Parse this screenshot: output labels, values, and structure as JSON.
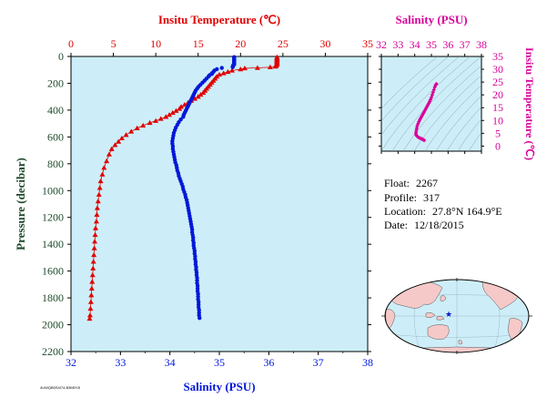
{
  "colors": {
    "temperature": "#e00000",
    "salinity": "#0018d8",
    "ts_plot": "#d8009a",
    "axis_text_dark": "#1f4a2a",
    "plot_bg": "#cdeef8",
    "land": "#f6c9c9",
    "ocean": "#cdeef8"
  },
  "chart_data": [
    {
      "type": "scatter",
      "title": "",
      "top_axis_label": "Insitu Temperature (℃)",
      "bottom_axis_label": "Salinity (PSU)",
      "ylabel": "Pressure (decibar)",
      "temp_lim": [
        0,
        35
      ],
      "sal_lim": [
        32,
        38
      ],
      "ylim": [
        2200,
        0
      ],
      "y_reversed": true,
      "temp_ticks": [
        "0",
        "5",
        "10",
        "15",
        "20",
        "25",
        "30",
        "35"
      ],
      "sal_ticks": [
        "32",
        "33",
        "34",
        "35",
        "36",
        "37",
        "38"
      ],
      "y_ticks": [
        "0",
        "200",
        "400",
        "600",
        "800",
        "1000",
        "1200",
        "1400",
        "1600",
        "1800",
        "2000",
        "2200"
      ],
      "grid": false,
      "series": [
        {
          "name": "Insitu Temperature",
          "marker": "triangle",
          "x_axis": "temperature",
          "points": [
            [
              24.3,
              5
            ],
            [
              24.3,
              10
            ],
            [
              24.3,
              15
            ],
            [
              24.3,
              20
            ],
            [
              24.3,
              25
            ],
            [
              24.3,
              30
            ],
            [
              24.3,
              35
            ],
            [
              24.3,
              40
            ],
            [
              24.3,
              45
            ],
            [
              24.3,
              50
            ],
            [
              24.3,
              55
            ],
            [
              24.3,
              60
            ],
            [
              24.2,
              65
            ],
            [
              24.2,
              70
            ],
            [
              24.1,
              75
            ],
            [
              23.5,
              80
            ],
            [
              22.0,
              85
            ],
            [
              20.5,
              88
            ],
            [
              20.0,
              95
            ],
            [
              19.0,
              105
            ],
            [
              18.5,
              115
            ],
            [
              18.0,
              125
            ],
            [
              17.5,
              135
            ],
            [
              17.2,
              150
            ],
            [
              17.0,
              165
            ],
            [
              16.8,
              180
            ],
            [
              16.6,
              195
            ],
            [
              16.4,
              210
            ],
            [
              16.2,
              225
            ],
            [
              16.0,
              240
            ],
            [
              15.8,
              255
            ],
            [
              15.6,
              270
            ],
            [
              15.3,
              285
            ],
            [
              15.0,
              300
            ],
            [
              14.6,
              315
            ],
            [
              14.2,
              330
            ],
            [
              13.8,
              345
            ],
            [
              13.4,
              360
            ],
            [
              13.0,
              375
            ],
            [
              12.8,
              390
            ],
            [
              12.4,
              405
            ],
            [
              12.0,
              420
            ],
            [
              11.6,
              435
            ],
            [
              11.2,
              450
            ],
            [
              10.6,
              465
            ],
            [
              10.0,
              480
            ],
            [
              9.3,
              495
            ],
            [
              8.5,
              515
            ],
            [
              7.8,
              535
            ],
            [
              7.1,
              560
            ],
            [
              6.5,
              585
            ],
            [
              6.0,
              610
            ],
            [
              5.6,
              635
            ],
            [
              5.2,
              660
            ],
            [
              4.8,
              690
            ],
            [
              4.5,
              730
            ],
            [
              4.2,
              780
            ],
            [
              3.9,
              830
            ],
            [
              3.7,
              880
            ],
            [
              3.5,
              930
            ],
            [
              3.4,
              980
            ],
            [
              3.3,
              1030
            ],
            [
              3.2,
              1080
            ],
            [
              3.1,
              1130
            ],
            [
              3.05,
              1180
            ],
            [
              3.0,
              1230
            ],
            [
              2.9,
              1280
            ],
            [
              2.85,
              1330
            ],
            [
              2.8,
              1380
            ],
            [
              2.75,
              1430
            ],
            [
              2.7,
              1480
            ],
            [
              2.65,
              1530
            ],
            [
              2.6,
              1580
            ],
            [
              2.55,
              1630
            ],
            [
              2.5,
              1680
            ],
            [
              2.45,
              1730
            ],
            [
              2.4,
              1780
            ],
            [
              2.35,
              1830
            ],
            [
              2.3,
              1880
            ],
            [
              2.25,
              1930
            ],
            [
              2.2,
              1955
            ]
          ]
        },
        {
          "name": "Salinity",
          "marker": "circle",
          "x_axis": "salinity",
          "points": [
            [
              35.3,
              5
            ],
            [
              35.3,
              10
            ],
            [
              35.3,
              15
            ],
            [
              35.3,
              20
            ],
            [
              35.3,
              25
            ],
            [
              35.3,
              30
            ],
            [
              35.3,
              35
            ],
            [
              35.3,
              40
            ],
            [
              35.3,
              45
            ],
            [
              35.3,
              50
            ],
            [
              35.3,
              55
            ],
            [
              35.3,
              60
            ],
            [
              35.28,
              65
            ],
            [
              35.28,
              70
            ],
            [
              35.27,
              75
            ],
            [
              35.27,
              80
            ],
            [
              35.05,
              85
            ],
            [
              34.95,
              95
            ],
            [
              34.9,
              105
            ],
            [
              34.88,
              115
            ],
            [
              34.85,
              125
            ],
            [
              34.85,
              130
            ],
            [
              34.8,
              140
            ],
            [
              34.78,
              150
            ],
            [
              34.74,
              165
            ],
            [
              34.7,
              180
            ],
            [
              34.66,
              195
            ],
            [
              34.62,
              210
            ],
            [
              34.58,
              225
            ],
            [
              34.55,
              240
            ],
            [
              34.52,
              255
            ],
            [
              34.5,
              270
            ],
            [
              34.48,
              285
            ],
            [
              34.46,
              300
            ],
            [
              34.44,
              315
            ],
            [
              34.42,
              330
            ],
            [
              34.4,
              345
            ],
            [
              34.38,
              360
            ],
            [
              34.36,
              375
            ],
            [
              34.34,
              390
            ],
            [
              34.32,
              405
            ],
            [
              34.3,
              420
            ],
            [
              34.28,
              435
            ],
            [
              34.27,
              450
            ],
            [
              34.22,
              470
            ],
            [
              34.18,
              490
            ],
            [
              34.15,
              510
            ],
            [
              34.12,
              530
            ],
            [
              34.1,
              550
            ],
            [
              34.08,
              570
            ],
            [
              34.07,
              590
            ],
            [
              34.06,
              610
            ],
            [
              34.05,
              630
            ],
            [
              34.05,
              650
            ],
            [
              34.06,
              670
            ],
            [
              34.06,
              690
            ],
            [
              34.07,
              710
            ],
            [
              34.08,
              730
            ],
            [
              34.09,
              750
            ],
            [
              34.1,
              770
            ],
            [
              34.11,
              790
            ],
            [
              34.13,
              810
            ],
            [
              34.14,
              830
            ],
            [
              34.15,
              850
            ],
            [
              34.17,
              870
            ],
            [
              34.18,
              890
            ],
            [
              34.2,
              910
            ],
            [
              34.22,
              930
            ],
            [
              34.24,
              950
            ],
            [
              34.26,
              970
            ],
            [
              34.27,
              990
            ],
            [
              34.29,
              1010
            ],
            [
              34.31,
              1030
            ],
            [
              34.32,
              1050
            ],
            [
              34.34,
              1070
            ],
            [
              34.35,
              1090
            ],
            [
              34.36,
              1110
            ],
            [
              34.37,
              1130
            ],
            [
              34.38,
              1150
            ],
            [
              34.39,
              1170
            ],
            [
              34.4,
              1190
            ],
            [
              34.41,
              1210
            ],
            [
              34.42,
              1230
            ],
            [
              34.43,
              1250
            ],
            [
              34.44,
              1270
            ],
            [
              34.45,
              1290
            ],
            [
              34.45,
              1310
            ],
            [
              34.46,
              1330
            ],
            [
              34.47,
              1350
            ],
            [
              34.47,
              1370
            ],
            [
              34.48,
              1390
            ],
            [
              34.48,
              1410
            ],
            [
              34.49,
              1430
            ],
            [
              34.5,
              1450
            ],
            [
              34.5,
              1470
            ],
            [
              34.51,
              1490
            ],
            [
              34.51,
              1510
            ],
            [
              34.52,
              1530
            ],
            [
              34.52,
              1550
            ],
            [
              34.53,
              1570
            ],
            [
              34.53,
              1590
            ],
            [
              34.54,
              1610
            ],
            [
              34.54,
              1630
            ],
            [
              34.55,
              1650
            ],
            [
              34.55,
              1670
            ],
            [
              34.55,
              1690
            ],
            [
              34.56,
              1710
            ],
            [
              34.56,
              1730
            ],
            [
              34.56,
              1750
            ],
            [
              34.57,
              1770
            ],
            [
              34.57,
              1790
            ],
            [
              34.57,
              1810
            ],
            [
              34.58,
              1830
            ],
            [
              34.58,
              1850
            ],
            [
              34.58,
              1870
            ],
            [
              34.59,
              1890
            ],
            [
              34.59,
              1910
            ],
            [
              34.59,
              1930
            ],
            [
              34.6,
              1950
            ]
          ]
        }
      ]
    },
    {
      "type": "scatter",
      "title": "",
      "xlabel": "Salinity (PSU)",
      "ylabel": "Insitu Temperature (℃)",
      "xlim": [
        32,
        38
      ],
      "ylim": [
        -2,
        35
      ],
      "x_ticks": [
        "32",
        "33",
        "34",
        "35",
        "36",
        "37",
        "38"
      ],
      "y_ticks": [
        "0",
        "5",
        "10",
        "15",
        "20",
        "25",
        "30",
        "35"
      ],
      "grid": false,
      "series": [
        {
          "marker": "diamond",
          "points": [
            [
              35.3,
              24.3
            ],
            [
              35.25,
              23.8
            ],
            [
              35.2,
              23.0
            ],
            [
              35.15,
              22.0
            ],
            [
              35.1,
              21.0
            ],
            [
              35.05,
              20.0
            ],
            [
              35.0,
              19.0
            ],
            [
              34.95,
              18.2
            ],
            [
              34.9,
              17.5
            ],
            [
              34.85,
              16.8
            ],
            [
              34.8,
              16.2
            ],
            [
              34.75,
              15.6
            ],
            [
              34.7,
              15.0
            ],
            [
              34.65,
              14.4
            ],
            [
              34.6,
              13.8
            ],
            [
              34.55,
              13.2
            ],
            [
              34.5,
              12.6
            ],
            [
              34.45,
              12.0
            ],
            [
              34.4,
              11.4
            ],
            [
              34.35,
              10.8
            ],
            [
              34.3,
              10.2
            ],
            [
              34.25,
              9.5
            ],
            [
              34.2,
              8.7
            ],
            [
              34.15,
              7.9
            ],
            [
              34.12,
              7.0
            ],
            [
              34.1,
              6.2
            ],
            [
              34.08,
              5.4
            ],
            [
              34.07,
              4.7
            ],
            [
              34.1,
              4.2
            ],
            [
              34.15,
              3.8
            ],
            [
              34.2,
              3.5
            ],
            [
              34.28,
              3.2
            ],
            [
              34.35,
              3.0
            ],
            [
              34.42,
              2.8
            ],
            [
              34.48,
              2.6
            ],
            [
              34.53,
              2.4
            ],
            [
              34.57,
              2.25
            ]
          ]
        }
      ]
    }
  ],
  "float_info": {
    "float_label": "Float:",
    "float_value": "2267",
    "profile_label": "Profile:",
    "profile_value": "317",
    "location_label": "Location:",
    "location_value": "27.8°N  164.9°E",
    "date_label": "Date:",
    "date_value": "12/18/2015"
  },
  "map": {
    "marker": "star",
    "marker_lat": 27.8,
    "marker_lon": 164.9
  },
  "footer_text": "4UWQB0S4I74,B3M0Y8"
}
